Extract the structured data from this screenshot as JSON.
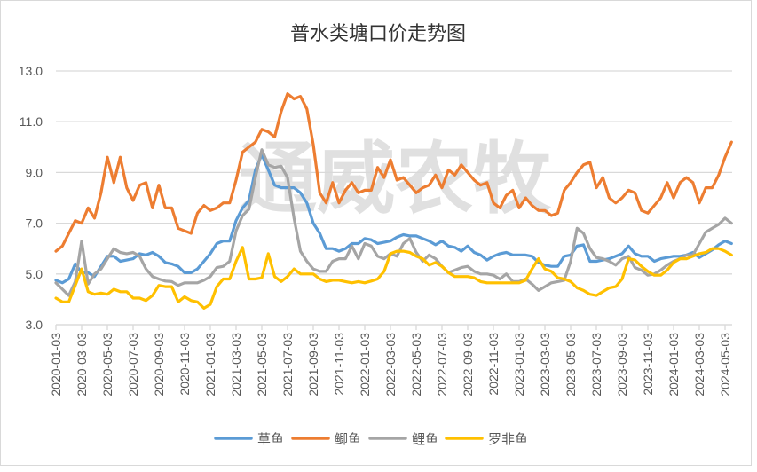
{
  "chart_data": {
    "type": "line",
    "title": "普水类塘口价走势图",
    "xlabel": "",
    "ylabel": "",
    "ylim": [
      3.0,
      13.0
    ],
    "yticks": [
      "3.0",
      "5.0",
      "7.0",
      "9.0",
      "11.0",
      "13.0"
    ],
    "xtick_labels": [
      "2020-01-03",
      "2020-03-03",
      "2020-05-03",
      "2020-07-03",
      "2020-09-03",
      "2020-11-03",
      "2021-01-03",
      "2021-03-03",
      "2021-05-03",
      "2021-07-03",
      "2021-09-03",
      "2021-11-03",
      "2022-01-03",
      "2022-03-03",
      "2022-05-03",
      "2022-07-03",
      "2022-09-03",
      "2022-11-03",
      "2023-01-03",
      "2023-03-03",
      "2023-05-03",
      "2023-07-03",
      "2023-09-03",
      "2023-11-03",
      "2024-01-03",
      "2024-03-03",
      "2024-05-03"
    ],
    "grid": "horizontal",
    "legend_position": "bottom",
    "watermark": "通威农牧",
    "x": [
      "2020-01-03",
      "2020-01-18",
      "2020-02-03",
      "2020-02-18",
      "2020-03-03",
      "2020-03-18",
      "2020-04-03",
      "2020-04-18",
      "2020-05-03",
      "2020-05-18",
      "2020-06-03",
      "2020-06-18",
      "2020-07-03",
      "2020-07-18",
      "2020-08-03",
      "2020-08-18",
      "2020-09-03",
      "2020-09-18",
      "2020-10-03",
      "2020-10-18",
      "2020-11-03",
      "2020-11-18",
      "2020-12-03",
      "2020-12-18",
      "2021-01-03",
      "2021-01-18",
      "2021-02-03",
      "2021-02-18",
      "2021-03-03",
      "2021-03-18",
      "2021-04-03",
      "2021-04-18",
      "2021-05-03",
      "2021-05-18",
      "2021-06-03",
      "2021-06-18",
      "2021-07-03",
      "2021-07-18",
      "2021-08-03",
      "2021-08-18",
      "2021-09-03",
      "2021-09-18",
      "2021-10-03",
      "2021-10-18",
      "2021-11-03",
      "2021-11-18",
      "2021-12-03",
      "2021-12-18",
      "2022-01-03",
      "2022-01-18",
      "2022-02-03",
      "2022-02-18",
      "2022-03-03",
      "2022-03-18",
      "2022-04-03",
      "2022-04-18",
      "2022-05-03",
      "2022-05-18",
      "2022-06-03",
      "2022-06-18",
      "2022-07-03",
      "2022-07-18",
      "2022-08-03",
      "2022-08-18",
      "2022-09-03",
      "2022-09-18",
      "2022-10-03",
      "2022-10-18",
      "2022-11-03",
      "2022-11-18",
      "2022-12-03",
      "2022-12-18",
      "2023-01-03",
      "2023-01-18",
      "2023-02-03",
      "2023-02-18",
      "2023-03-03",
      "2023-03-18",
      "2023-04-03",
      "2023-04-18",
      "2023-05-03",
      "2023-05-18",
      "2023-06-03",
      "2023-06-18",
      "2023-07-03",
      "2023-07-18",
      "2023-08-03",
      "2023-08-18",
      "2023-09-03",
      "2023-09-18",
      "2023-10-03",
      "2023-10-18",
      "2023-11-03",
      "2023-11-18",
      "2023-12-03",
      "2023-12-18",
      "2024-01-03",
      "2024-01-18",
      "2024-02-03",
      "2024-02-18",
      "2024-03-03",
      "2024-03-18",
      "2024-04-03",
      "2024-04-18",
      "2024-05-03",
      "2024-05-18"
    ],
    "series": [
      {
        "name": "草鱼",
        "color": "#5B9BD5",
        "values": [
          4.75,
          4.65,
          4.8,
          5.4,
          5.05,
          5.05,
          4.9,
          5.3,
          5.7,
          5.7,
          5.5,
          5.55,
          5.6,
          5.8,
          5.75,
          5.85,
          5.7,
          5.45,
          5.4,
          5.3,
          5.05,
          5.05,
          5.2,
          5.5,
          5.8,
          6.2,
          6.3,
          6.3,
          7.1,
          7.6,
          7.9,
          9.1,
          9.7,
          9.1,
          8.5,
          8.4,
          8.4,
          8.4,
          8.2,
          7.8,
          7.0,
          6.6,
          6.0,
          6.0,
          5.9,
          6.0,
          6.2,
          6.2,
          6.4,
          6.35,
          6.2,
          6.25,
          6.3,
          6.45,
          6.55,
          6.5,
          6.5,
          6.4,
          6.3,
          6.15,
          6.3,
          6.1,
          6.05,
          5.9,
          6.1,
          5.85,
          5.75,
          5.55,
          5.7,
          5.8,
          5.85,
          5.75,
          5.75,
          5.75,
          5.7,
          5.45,
          5.35,
          5.3,
          5.3,
          5.7,
          5.75,
          6.1,
          6.15,
          5.5,
          5.5,
          5.55,
          5.6,
          5.7,
          5.8,
          6.1,
          5.8,
          5.7,
          5.7,
          5.5,
          5.6,
          5.65,
          5.7,
          5.7,
          5.75,
          5.85,
          5.65,
          5.8,
          5.95,
          6.15,
          6.3,
          6.2
        ]
      },
      {
        "name": "鲫鱼",
        "color": "#ED7D31",
        "values": [
          5.9,
          6.1,
          6.6,
          7.1,
          7.0,
          7.6,
          7.2,
          8.2,
          9.6,
          8.6,
          9.6,
          8.4,
          7.9,
          8.5,
          8.6,
          7.6,
          8.5,
          7.6,
          7.6,
          6.8,
          6.7,
          6.6,
          7.4,
          7.7,
          7.5,
          7.6,
          7.8,
          7.8,
          8.7,
          9.8,
          10.0,
          10.2,
          10.7,
          10.6,
          10.4,
          11.4,
          12.1,
          11.9,
          12.0,
          11.5,
          10.1,
          8.2,
          7.8,
          8.6,
          7.8,
          8.3,
          8.6,
          8.2,
          8.3,
          8.3,
          9.2,
          8.8,
          9.5,
          8.7,
          8.8,
          8.5,
          8.2,
          8.4,
          8.5,
          8.9,
          8.4,
          9.1,
          8.9,
          9.3,
          9.0,
          8.7,
          8.5,
          8.6,
          7.8,
          7.6,
          8.1,
          8.3,
          7.6,
          8.0,
          7.7,
          7.5,
          7.5,
          7.3,
          7.4,
          8.3,
          8.6,
          9.0,
          9.3,
          9.4,
          8.4,
          8.8,
          8.0,
          7.8,
          8.0,
          8.3,
          8.2,
          7.5,
          7.4,
          7.7,
          8.0,
          8.6,
          8.0,
          8.6,
          8.8,
          8.6,
          7.8,
          8.4,
          8.4,
          8.9,
          9.6,
          10.2
        ]
      },
      {
        "name": "鲤鱼",
        "color": "#A5A5A5",
        "values": [
          4.65,
          4.4,
          4.15,
          4.7,
          6.3,
          4.6,
          5.0,
          5.2,
          5.6,
          6.0,
          5.85,
          5.8,
          5.85,
          5.7,
          5.2,
          4.9,
          4.8,
          4.72,
          4.7,
          4.55,
          4.65,
          4.65,
          4.65,
          4.75,
          4.9,
          5.25,
          5.3,
          5.5,
          6.7,
          7.3,
          7.55,
          8.8,
          9.9,
          9.3,
          9.2,
          9.25,
          8.8,
          7.2,
          5.9,
          5.5,
          5.2,
          5.1,
          5.1,
          5.5,
          5.6,
          5.6,
          6.1,
          5.6,
          6.2,
          6.1,
          5.7,
          5.6,
          5.8,
          5.7,
          6.2,
          6.4,
          5.85,
          5.5,
          5.75,
          5.6,
          5.3,
          5.05,
          5.15,
          5.25,
          5.3,
          5.1,
          5.0,
          5.0,
          4.95,
          4.8,
          5.0,
          4.7,
          4.7,
          4.8,
          4.6,
          4.35,
          4.5,
          4.65,
          4.7,
          4.75,
          5.5,
          6.8,
          6.6,
          6.0,
          5.65,
          5.6,
          5.5,
          5.35,
          5.6,
          5.7,
          5.25,
          5.15,
          4.95,
          5.0,
          5.15,
          5.35,
          5.5,
          5.6,
          5.75,
          5.75,
          6.2,
          6.65,
          6.8,
          6.95,
          7.2,
          7.0
        ]
      },
      {
        "name": "罗非鱼",
        "color": "#FFC000",
        "values": [
          4.05,
          3.9,
          3.9,
          4.55,
          5.2,
          4.3,
          4.2,
          4.25,
          4.2,
          4.4,
          4.3,
          4.3,
          4.05,
          4.05,
          3.95,
          4.15,
          4.55,
          4.5,
          4.5,
          3.9,
          4.1,
          3.95,
          3.9,
          3.65,
          3.8,
          4.5,
          4.8,
          4.8,
          5.5,
          6.05,
          4.8,
          4.8,
          4.85,
          5.8,
          4.9,
          4.7,
          4.9,
          5.2,
          5.0,
          5.0,
          5.0,
          4.8,
          4.7,
          4.75,
          4.75,
          4.7,
          4.65,
          4.7,
          4.65,
          4.72,
          4.8,
          5.1,
          5.8,
          5.9,
          5.9,
          5.85,
          5.7,
          5.6,
          5.35,
          5.45,
          5.3,
          5.05,
          4.9,
          4.9,
          4.9,
          4.85,
          4.7,
          4.65,
          4.65,
          4.65,
          4.65,
          4.65,
          4.65,
          4.75,
          5.2,
          5.6,
          5.2,
          5.1,
          4.85,
          4.8,
          4.7,
          4.45,
          4.35,
          4.2,
          4.15,
          4.3,
          4.45,
          4.5,
          4.8,
          5.6,
          5.55,
          5.3,
          5.1,
          4.95,
          4.95,
          5.15,
          5.45,
          5.6,
          5.6,
          5.7,
          5.8,
          5.85,
          6.0,
          6.0,
          5.9,
          5.75
        ]
      }
    ]
  }
}
